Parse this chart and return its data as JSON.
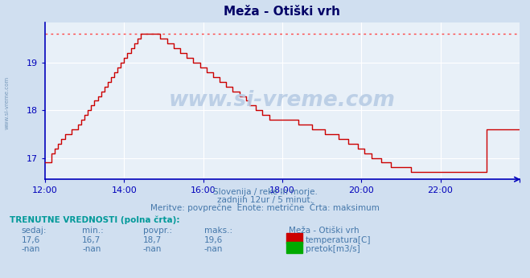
{
  "title": "Meža - Otiški vrh",
  "bg_color": "#d0dff0",
  "plot_bg_color": "#e8f0f8",
  "grid_color": "#ffffff",
  "line_color": "#cc0000",
  "max_line_color": "#ff4444",
  "axis_color": "#0000bb",
  "text_color": "#0000aa",
  "xlabel_color": "#4477aa",
  "title_color": "#000066",
  "ylim": [
    16.55,
    19.85
  ],
  "yticks": [
    17,
    18,
    19
  ],
  "xlim_minutes": [
    0,
    720
  ],
  "xtick_minutes": [
    0,
    120,
    240,
    360,
    480,
    600,
    720
  ],
  "xtick_labels": [
    "12:00",
    "14:00",
    "16:00",
    "18:00",
    "20:00",
    "22:00",
    ""
  ],
  "max_value": 19.6,
  "subtitle1": "Slovenija / reke in morje.",
  "subtitle2": "zadnjih 12ur / 5 minut.",
  "subtitle3": "Meritve: povprečne  Enote: metrične  Črta: maksimum",
  "table_header": "TRENUTNE VREDNOSTI (polna črta):",
  "col_headers": [
    "sedaj:",
    "min.:",
    "povpr.:",
    "maks.:"
  ],
  "row1_vals": [
    "17,6",
    "16,7",
    "18,7",
    "19,6"
  ],
  "row2_vals": [
    "-nan",
    "-nan",
    "-nan",
    "-nan"
  ],
  "legend_label1": "temperatura[C]",
  "legend_label2": "pretok[m3/s]",
  "legend_color1": "#cc0000",
  "legend_color2": "#00aa00",
  "station_name": "Meža - Otiški vrh",
  "watermark": "www.si-vreme.com",
  "temp_data": [
    16.9,
    16.9,
    17.1,
    17.2,
    17.3,
    17.4,
    17.5,
    17.5,
    17.6,
    17.6,
    17.7,
    17.8,
    17.9,
    18.0,
    18.1,
    18.2,
    18.3,
    18.4,
    18.5,
    18.6,
    18.7,
    18.8,
    18.9,
    19.0,
    19.1,
    19.2,
    19.3,
    19.4,
    19.5,
    19.6,
    19.6,
    19.6,
    19.6,
    19.6,
    19.6,
    19.5,
    19.5,
    19.4,
    19.4,
    19.3,
    19.3,
    19.2,
    19.2,
    19.1,
    19.1,
    19.0,
    19.0,
    18.9,
    18.9,
    18.8,
    18.8,
    18.7,
    18.7,
    18.6,
    18.6,
    18.5,
    18.5,
    18.4,
    18.4,
    18.3,
    18.3,
    18.2,
    18.1,
    18.1,
    18.0,
    18.0,
    17.9,
    17.9,
    17.8,
    17.8,
    17.8,
    17.8,
    17.8,
    17.8,
    17.8,
    17.8,
    17.8,
    17.7,
    17.7,
    17.7,
    17.7,
    17.6,
    17.6,
    17.6,
    17.6,
    17.5,
    17.5,
    17.5,
    17.5,
    17.4,
    17.4,
    17.4,
    17.3,
    17.3,
    17.3,
    17.2,
    17.2,
    17.1,
    17.1,
    17.0,
    17.0,
    17.0,
    16.9,
    16.9,
    16.9,
    16.8,
    16.8,
    16.8,
    16.8,
    16.8,
    16.8,
    16.7,
    16.7,
    16.7,
    16.7,
    16.7,
    16.7,
    16.7,
    16.7,
    16.7,
    16.7,
    16.7,
    16.7,
    16.7,
    16.7,
    16.7,
    16.7,
    16.7,
    16.7,
    16.7,
    16.7,
    16.7,
    16.7,
    16.7,
    17.6,
    17.6,
    17.6,
    17.6,
    17.6,
    17.6,
    17.6,
    17.6,
    17.6,
    17.6,
    17.6,
    17.6
  ]
}
